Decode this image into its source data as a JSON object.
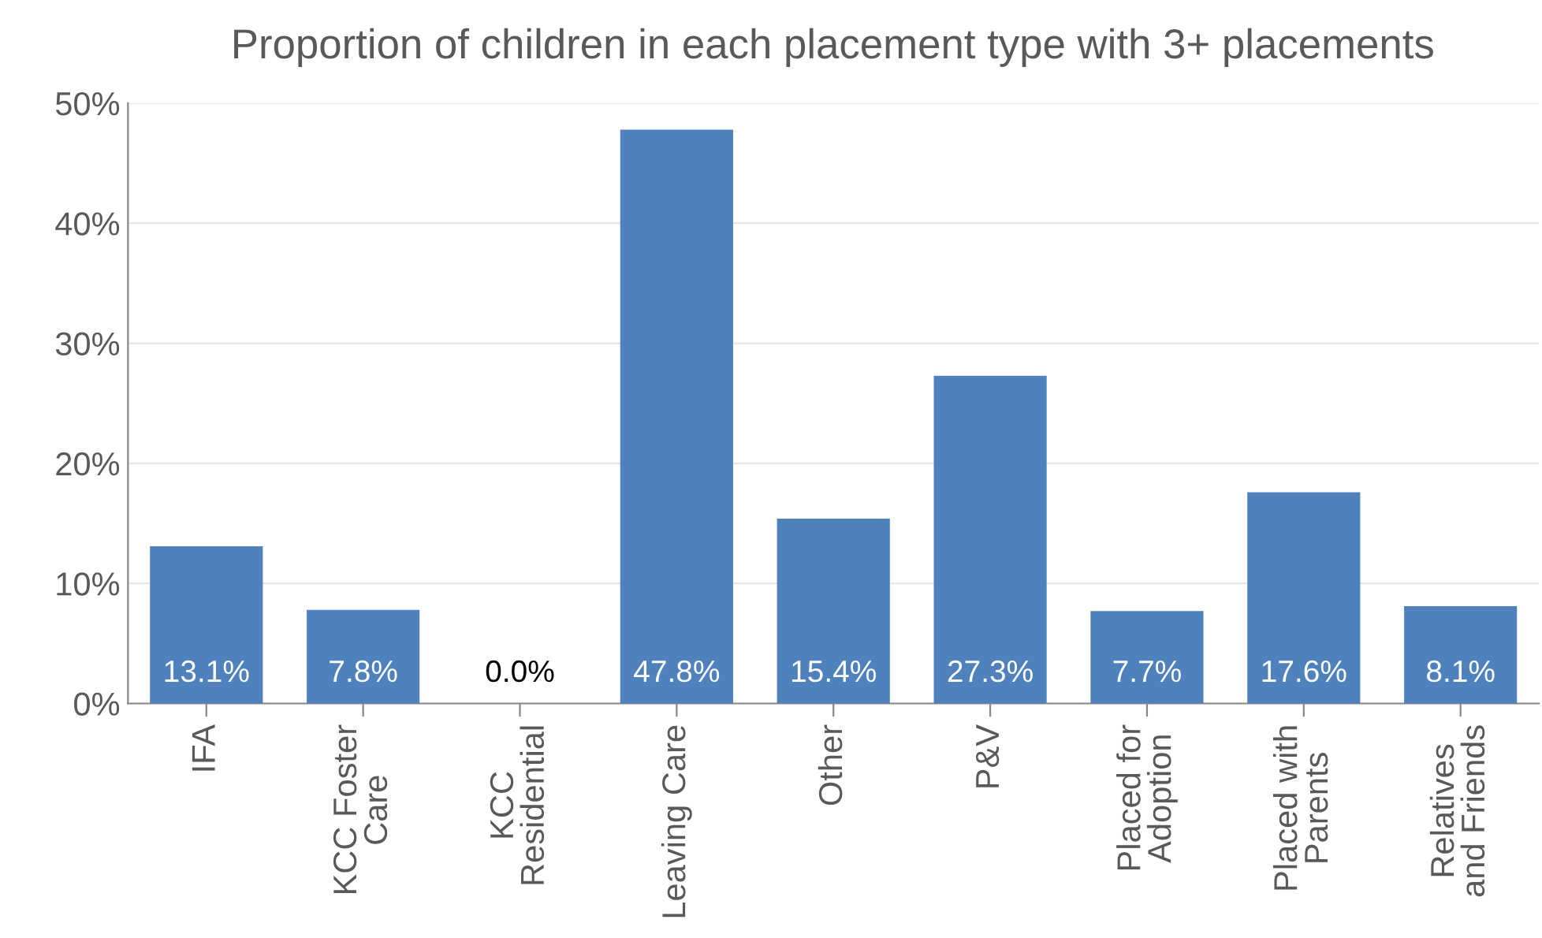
{
  "chart_data": {
    "type": "bar",
    "title": "Proportion of children in each placement type with 3+ placements",
    "categories": [
      "IFA",
      "KCC Foster Care",
      "KCC Residential",
      "Leaving Care",
      "Other",
      "P&V",
      "Placed for Adoption",
      "Placed with Parents",
      "Relatives and Friends"
    ],
    "values": [
      13.1,
      7.8,
      0.0,
      47.8,
      15.4,
      27.3,
      7.7,
      17.6,
      8.1
    ],
    "value_labels": [
      "13.1%",
      "7.8%",
      "0.0%",
      "47.8%",
      "15.4%",
      "27.3%",
      "7.7%",
      "17.6%",
      "8.1%"
    ],
    "color": "#4f81bd",
    "ylim": [
      0,
      50
    ],
    "yticks": [
      {
        "value": 0,
        "label": "0%"
      },
      {
        "value": 10,
        "label": "10%"
      },
      {
        "value": 20,
        "label": "20%"
      },
      {
        "value": 30,
        "label": "30%"
      },
      {
        "value": 40,
        "label": "40%"
      },
      {
        "value": 50,
        "label": "50%"
      }
    ],
    "grid": "y",
    "legend": false
  }
}
